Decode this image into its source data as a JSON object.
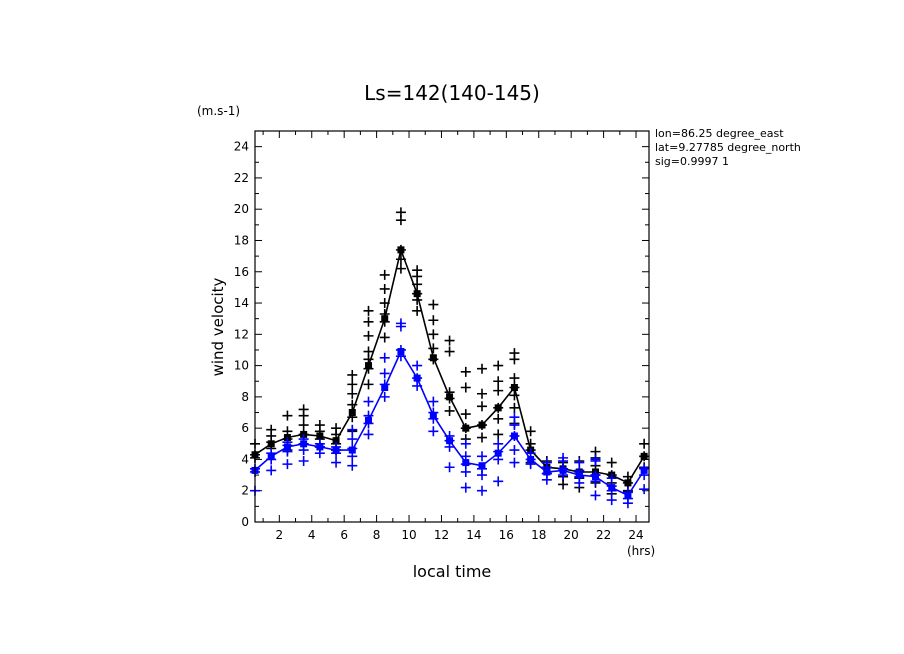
{
  "chart_data": {
    "type": "line",
    "title": "Ls=142(140-145)",
    "ylabel": "wind velocity",
    "yunit": "(m.s-1)",
    "xlabel": "local time",
    "xunit": "(hrs)",
    "xlim": [
      0.5,
      24.8
    ],
    "ylim": [
      0,
      25
    ],
    "xticks": [
      2,
      4,
      6,
      8,
      10,
      12,
      14,
      16,
      18,
      20,
      22,
      24
    ],
    "yticks": [
      0,
      2,
      4,
      6,
      8,
      10,
      12,
      14,
      16,
      18,
      20,
      22,
      24
    ],
    "annotations": [
      "lon=86.25 degree_east",
      "lat=9.27785 degree_north",
      "sig=0.9997 1"
    ],
    "series": [
      {
        "color": "#000000",
        "mean": [
          [
            0.5,
            4.3
          ],
          [
            1.5,
            5.0
          ],
          [
            2.5,
            5.4
          ],
          [
            3.5,
            5.6
          ],
          [
            4.5,
            5.5
          ],
          [
            5.5,
            5.2
          ],
          [
            6.5,
            7.0
          ],
          [
            7.5,
            10.0
          ],
          [
            8.5,
            13.0
          ],
          [
            9.5,
            17.4
          ],
          [
            10.5,
            14.6
          ],
          [
            11.5,
            10.5
          ],
          [
            12.5,
            8.0
          ],
          [
            13.5,
            6.0
          ],
          [
            14.5,
            6.2
          ],
          [
            15.5,
            7.3
          ],
          [
            16.5,
            8.6
          ],
          [
            17.5,
            4.6
          ],
          [
            18.5,
            3.5
          ],
          [
            19.5,
            3.4
          ],
          [
            20.5,
            3.2
          ],
          [
            21.5,
            3.2
          ],
          [
            22.5,
            3.0
          ],
          [
            23.5,
            2.5
          ],
          [
            24.5,
            4.2
          ]
        ],
        "samples": [
          [
            0.5,
            4.3
          ],
          [
            0.5,
            4.1
          ],
          [
            0.5,
            5.0
          ],
          [
            1.5,
            4.7
          ],
          [
            1.5,
            5.1
          ],
          [
            1.5,
            5.5
          ],
          [
            1.5,
            5.9
          ],
          [
            2.5,
            4.6
          ],
          [
            2.5,
            5.3
          ],
          [
            2.5,
            5.8
          ],
          [
            2.5,
            6.8
          ],
          [
            3.5,
            5.0
          ],
          [
            3.5,
            5.6
          ],
          [
            3.5,
            6.2
          ],
          [
            3.5,
            6.8
          ],
          [
            3.5,
            7.2
          ],
          [
            4.5,
            4.8
          ],
          [
            4.5,
            5.3
          ],
          [
            4.5,
            5.8
          ],
          [
            4.5,
            6.2
          ],
          [
            5.5,
            4.6
          ],
          [
            5.5,
            5.0
          ],
          [
            5.5,
            5.6
          ],
          [
            5.5,
            6.0
          ],
          [
            6.5,
            5.8
          ],
          [
            6.5,
            6.7
          ],
          [
            6.5,
            7.5
          ],
          [
            6.5,
            8.2
          ],
          [
            6.5,
            8.8
          ],
          [
            6.5,
            9.4
          ],
          [
            7.5,
            8.8
          ],
          [
            7.5,
            9.8
          ],
          [
            7.5,
            10.4
          ],
          [
            7.5,
            10.9
          ],
          [
            7.5,
            11.9
          ],
          [
            7.5,
            12.8
          ],
          [
            7.5,
            13.5
          ],
          [
            8.5,
            11.8
          ],
          [
            8.5,
            12.8
          ],
          [
            8.5,
            13.3
          ],
          [
            8.5,
            14.0
          ],
          [
            8.5,
            14.9
          ],
          [
            8.5,
            15.8
          ],
          [
            9.5,
            16.2
          ],
          [
            9.5,
            16.8
          ],
          [
            9.5,
            17.4
          ],
          [
            9.5,
            19.3
          ],
          [
            9.5,
            19.8
          ],
          [
            10.5,
            13.5
          ],
          [
            10.5,
            14.2
          ],
          [
            10.5,
            14.6
          ],
          [
            10.5,
            15.2
          ],
          [
            10.5,
            15.7
          ],
          [
            10.5,
            16.1
          ],
          [
            11.5,
            10.4
          ],
          [
            11.5,
            11.1
          ],
          [
            11.5,
            12.0
          ],
          [
            11.5,
            12.9
          ],
          [
            11.5,
            13.9
          ],
          [
            12.5,
            7.1
          ],
          [
            12.5,
            7.9
          ],
          [
            12.5,
            8.3
          ],
          [
            12.5,
            10.9
          ],
          [
            12.5,
            11.6
          ],
          [
            13.5,
            5.3
          ],
          [
            13.5,
            6.0
          ],
          [
            13.5,
            6.9
          ],
          [
            13.5,
            8.6
          ],
          [
            13.5,
            9.6
          ],
          [
            14.5,
            5.4
          ],
          [
            14.5,
            6.2
          ],
          [
            14.5,
            7.4
          ],
          [
            14.5,
            8.2
          ],
          [
            14.5,
            9.8
          ],
          [
            15.5,
            5.6
          ],
          [
            15.5,
            6.6
          ],
          [
            15.5,
            7.3
          ],
          [
            15.5,
            8.4
          ],
          [
            15.5,
            9.0
          ],
          [
            15.5,
            10.0
          ],
          [
            16.5,
            6.3
          ],
          [
            16.5,
            7.3
          ],
          [
            16.5,
            8.1
          ],
          [
            16.5,
            8.6
          ],
          [
            16.5,
            9.2
          ],
          [
            16.5,
            10.4
          ],
          [
            16.5,
            10.8
          ],
          [
            17.5,
            3.8
          ],
          [
            17.5,
            4.6
          ],
          [
            17.5,
            5.0
          ],
          [
            17.5,
            5.8
          ],
          [
            18.5,
            3.1
          ],
          [
            18.5,
            3.5
          ],
          [
            18.5,
            3.9
          ],
          [
            19.5,
            2.4
          ],
          [
            19.5,
            2.9
          ],
          [
            19.5,
            3.4
          ],
          [
            19.5,
            3.8
          ],
          [
            20.5,
            2.2
          ],
          [
            20.5,
            2.8
          ],
          [
            20.5,
            3.2
          ],
          [
            20.5,
            3.9
          ],
          [
            21.5,
            2.5
          ],
          [
            21.5,
            3.0
          ],
          [
            21.5,
            3.6
          ],
          [
            21.5,
            4.1
          ],
          [
            21.5,
            4.5
          ],
          [
            22.5,
            1.8
          ],
          [
            22.5,
            2.5
          ],
          [
            22.5,
            3.0
          ],
          [
            22.5,
            3.8
          ],
          [
            23.5,
            2.0
          ],
          [
            23.5,
            2.5
          ],
          [
            23.5,
            2.9
          ],
          [
            24.5,
            3.5
          ],
          [
            24.5,
            4.2
          ],
          [
            24.5,
            5.0
          ]
        ]
      },
      {
        "color": "#0000ff",
        "mean": [
          [
            0.5,
            3.3
          ],
          [
            1.5,
            4.2
          ],
          [
            2.5,
            4.8
          ],
          [
            3.5,
            5.0
          ],
          [
            4.5,
            4.8
          ],
          [
            5.5,
            4.6
          ],
          [
            6.5,
            4.6
          ],
          [
            7.5,
            6.5
          ],
          [
            8.5,
            8.6
          ],
          [
            9.5,
            10.9
          ],
          [
            10.5,
            9.2
          ],
          [
            11.5,
            6.8
          ],
          [
            12.5,
            5.2
          ],
          [
            13.5,
            3.8
          ],
          [
            14.5,
            3.6
          ],
          [
            15.5,
            4.4
          ],
          [
            16.5,
            5.5
          ],
          [
            17.5,
            4.0
          ],
          [
            18.5,
            3.2
          ],
          [
            18.5,
            3.2
          ],
          [
            19.5,
            3.3
          ],
          [
            20.5,
            3.0
          ],
          [
            21.5,
            2.9
          ],
          [
            22.5,
            2.2
          ],
          [
            23.5,
            1.7
          ],
          [
            24.5,
            3.3
          ]
        ],
        "samples": [
          [
            0.5,
            2.0
          ],
          [
            0.5,
            3.2
          ],
          [
            0.5,
            3.4
          ],
          [
            1.5,
            3.3
          ],
          [
            1.5,
            4.0
          ],
          [
            1.5,
            4.4
          ],
          [
            2.5,
            3.7
          ],
          [
            2.5,
            4.5
          ],
          [
            2.5,
            4.9
          ],
          [
            2.5,
            5.1
          ],
          [
            3.5,
            3.9
          ],
          [
            3.5,
            4.6
          ],
          [
            3.5,
            5.0
          ],
          [
            3.5,
            5.3
          ],
          [
            4.5,
            4.4
          ],
          [
            4.5,
            4.8
          ],
          [
            4.5,
            5.0
          ],
          [
            5.5,
            3.8
          ],
          [
            5.5,
            4.4
          ],
          [
            5.5,
            4.8
          ],
          [
            6.5,
            3.6
          ],
          [
            6.5,
            4.2
          ],
          [
            6.5,
            4.7
          ],
          [
            6.5,
            5.3
          ],
          [
            6.5,
            5.9
          ],
          [
            7.5,
            5.6
          ],
          [
            7.5,
            6.3
          ],
          [
            7.5,
            6.8
          ],
          [
            7.5,
            7.7
          ],
          [
            8.5,
            8.0
          ],
          [
            8.5,
            8.8
          ],
          [
            8.5,
            9.5
          ],
          [
            8.5,
            10.5
          ],
          [
            9.5,
            10.6
          ],
          [
            9.5,
            11.0
          ],
          [
            9.5,
            12.5
          ],
          [
            9.5,
            12.7
          ],
          [
            10.5,
            8.7
          ],
          [
            10.5,
            9.2
          ],
          [
            10.5,
            10.0
          ],
          [
            11.5,
            5.8
          ],
          [
            11.5,
            6.6
          ],
          [
            11.5,
            7.0
          ],
          [
            11.5,
            7.7
          ],
          [
            12.5,
            3.5
          ],
          [
            12.5,
            4.8
          ],
          [
            12.5,
            5.2
          ],
          [
            12.5,
            5.5
          ],
          [
            13.5,
            2.2
          ],
          [
            13.5,
            3.2
          ],
          [
            13.5,
            3.7
          ],
          [
            13.5,
            4.2
          ],
          [
            13.5,
            5.0
          ],
          [
            14.5,
            2.0
          ],
          [
            14.5,
            3.0
          ],
          [
            14.5,
            3.4
          ],
          [
            14.5,
            4.2
          ],
          [
            15.5,
            2.6
          ],
          [
            15.5,
            4.0
          ],
          [
            15.5,
            4.5
          ],
          [
            15.5,
            5.0
          ],
          [
            16.5,
            3.8
          ],
          [
            16.5,
            4.6
          ],
          [
            16.5,
            5.5
          ],
          [
            16.5,
            6.2
          ],
          [
            16.5,
            6.7
          ],
          [
            17.5,
            3.7
          ],
          [
            17.5,
            4.0
          ],
          [
            17.5,
            4.4
          ],
          [
            18.5,
            2.7
          ],
          [
            18.5,
            3.1
          ],
          [
            18.5,
            3.5
          ],
          [
            18.5,
            3.8
          ],
          [
            19.5,
            3.0
          ],
          [
            19.5,
            3.4
          ],
          [
            19.5,
            3.9
          ],
          [
            19.5,
            4.1
          ],
          [
            20.5,
            2.5
          ],
          [
            20.5,
            2.9
          ],
          [
            20.5,
            3.3
          ],
          [
            20.5,
            3.8
          ],
          [
            21.5,
            1.7
          ],
          [
            21.5,
            2.6
          ],
          [
            21.5,
            3.0
          ],
          [
            21.5,
            3.9
          ],
          [
            21.5,
            4.0
          ],
          [
            22.5,
            1.4
          ],
          [
            22.5,
            2.0
          ],
          [
            22.5,
            2.3
          ],
          [
            22.5,
            2.8
          ],
          [
            23.5,
            1.2
          ],
          [
            23.5,
            1.5
          ],
          [
            23.5,
            1.9
          ],
          [
            24.5,
            2.1
          ],
          [
            24.5,
            3.0
          ],
          [
            24.5,
            3.4
          ]
        ]
      }
    ]
  }
}
